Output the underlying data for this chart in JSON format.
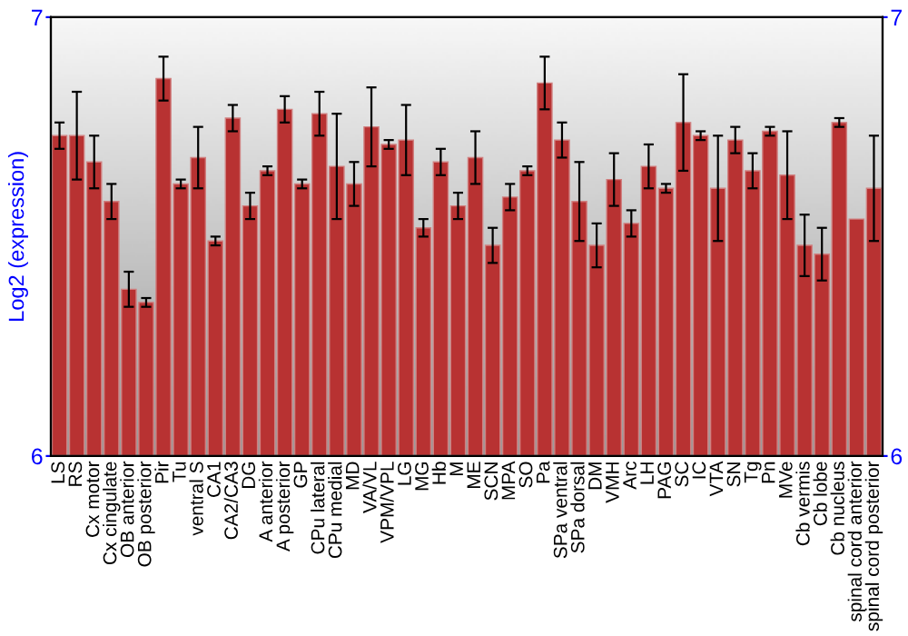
{
  "chart_data": {
    "type": "bar",
    "ylabel": "Log2 (expression)",
    "categories": [
      "LS",
      "RS",
      "Cx motor",
      "Cx cingulate",
      "OB anterior",
      "OB posterior",
      "Pir",
      "Tu",
      "ventral S",
      "CA1",
      "CA2/CA3",
      "DG",
      "A anterior",
      "A posterior",
      "GP",
      "CPu lateral",
      "CPu medial",
      "MD",
      "VA/VL",
      "VPM/VPL",
      "LG",
      "MG",
      "Hb",
      "M",
      "ME",
      "SCN",
      "MPA",
      "SO",
      "Pa",
      "SPa ventral",
      "SPa dorsal",
      "DM",
      "VMH",
      "Arc",
      "LH",
      "PAG",
      "SC",
      "IC",
      "VTA",
      "SN",
      "Tg",
      "Pn",
      "MVe",
      "Cb vermis",
      "Cb lobe",
      "Cb nucleus",
      "spinal cord anterior",
      "spinal cord posterior"
    ],
    "series": [
      {
        "color": "#b83232",
        "values": [
          6.73,
          6.73,
          6.67,
          6.58,
          6.38,
          6.35,
          6.86,
          6.62,
          6.68,
          6.49,
          6.77,
          6.57,
          6.65,
          6.79,
          6.62,
          6.78,
          6.66,
          6.62,
          6.75,
          6.71,
          6.72,
          6.52,
          6.67,
          6.57,
          6.68,
          6.48,
          6.59,
          6.65,
          6.85,
          6.72,
          6.58,
          6.48,
          6.63,
          6.53,
          6.66,
          6.61,
          6.76,
          6.73,
          6.61,
          6.72,
          6.65,
          6.74,
          6.64,
          6.48,
          6.46,
          6.76,
          6.54,
          6.61
        ],
        "errors": [
          0.03,
          0.1,
          0.06,
          0.04,
          0.04,
          0.01,
          0.05,
          0.01,
          0.07,
          0.01,
          0.03,
          0.03,
          0.01,
          0.03,
          0.01,
          0.05,
          0.12,
          0.05,
          0.09,
          0.01,
          0.08,
          0.02,
          0.03,
          0.03,
          0.06,
          0.04,
          0.03,
          0.01,
          0.06,
          0.04,
          0.09,
          0.05,
          0.06,
          0.03,
          0.05,
          0.01,
          0.11,
          0.01,
          0.12,
          0.03,
          0.04,
          0.01,
          0.1,
          0.07,
          0.06,
          0.01,
          null,
          0.12
        ]
      }
    ],
    "ylim": [
      6,
      7
    ],
    "yticks": [
      6,
      7
    ],
    "y2lim": [
      6,
      7
    ],
    "y2ticks": [
      6,
      7
    ],
    "grid": false,
    "legend": false
  }
}
